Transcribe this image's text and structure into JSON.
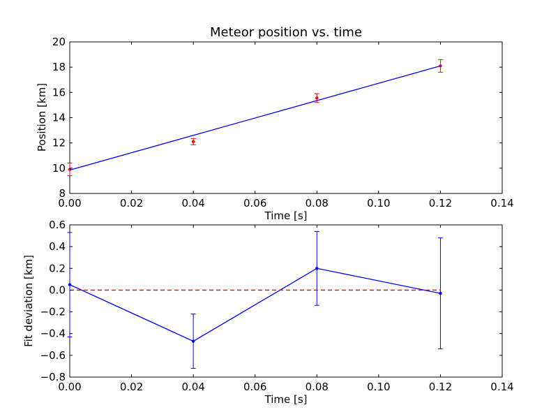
{
  "chart_data": [
    {
      "type": "scatter",
      "title": "Meteor position vs. time",
      "xlabel": "Time [s]",
      "ylabel": "Position [km]",
      "xlim": [
        0.0,
        0.14
      ],
      "ylim": [
        8,
        20
      ],
      "xticks": [
        "0.00",
        "0.02",
        "0.04",
        "0.06",
        "0.08",
        "0.10",
        "0.12",
        "0.14"
      ],
      "yticks": [
        "8",
        "10",
        "12",
        "14",
        "16",
        "18",
        "20"
      ],
      "grid": false,
      "series": [
        {
          "kind": "errorbar",
          "color": "#ff0000",
          "points": [
            {
              "x": 0.0,
              "y": 9.9,
              "err": 0.5
            },
            {
              "x": 0.04,
              "y": 12.1,
              "err": 0.25
            },
            {
              "x": 0.08,
              "y": 15.55,
              "err": 0.35
            },
            {
              "x": 0.12,
              "y": 18.1,
              "err": 0.5
            }
          ]
        },
        {
          "kind": "line",
          "color": "#0000ff",
          "x": [
            0.0,
            0.12
          ],
          "y": [
            9.85,
            18.1
          ]
        }
      ]
    },
    {
      "type": "line",
      "title": "",
      "xlabel": "Time [s]",
      "ylabel": "Fit deviation [km]",
      "xlim": [
        0.0,
        0.14
      ],
      "ylim": [
        -0.8,
        0.6
      ],
      "xticks": [
        "0.00",
        "0.02",
        "0.04",
        "0.06",
        "0.08",
        "0.10",
        "0.12",
        "0.14"
      ],
      "yticks": [
        "-0.8",
        "-0.6",
        "-0.4",
        "-0.2",
        "0.0",
        "0.2",
        "0.4",
        "0.6"
      ],
      "grid": false,
      "series": [
        {
          "kind": "errorbar-line",
          "color": "#0000ff",
          "points": [
            {
              "x": 0.0,
              "y": 0.05,
              "err": 0.48
            },
            {
              "x": 0.04,
              "y": -0.47,
              "err": 0.25
            },
            {
              "x": 0.08,
              "y": 0.2,
              "err": 0.34
            },
            {
              "x": 0.12,
              "y": -0.03,
              "err": 0.51
            }
          ]
        },
        {
          "kind": "dashed",
          "color": "#ff0000",
          "x": [
            0.0,
            0.12
          ],
          "y": [
            0.0,
            0.0
          ]
        }
      ]
    }
  ]
}
